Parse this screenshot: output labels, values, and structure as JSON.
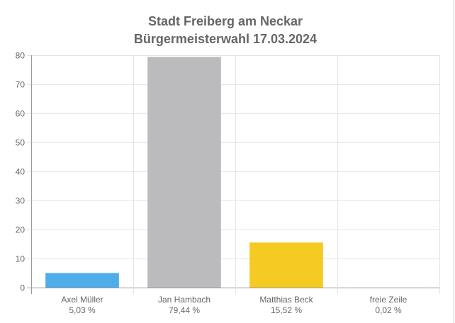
{
  "chart_data": {
    "type": "bar",
    "title": [
      "Stadt Freiberg am Neckar",
      "Bürgermeisterwahl 17.03.2024"
    ],
    "categories": [
      "Axel Müller",
      "Jan Hambach",
      "Matthias Beck",
      "freie Zeile"
    ],
    "category_sublabels": [
      "5,03 %",
      "79,44 %",
      "15,52 %",
      "0,02 %"
    ],
    "values": [
      5.03,
      79.44,
      15.52,
      0.02
    ],
    "colors": [
      "#4fade9",
      "#bbbbbd",
      "#f5ca23",
      "#e0e0e0"
    ],
    "xlabel": "",
    "ylabel": "",
    "ylim": [
      0,
      80
    ],
    "yticks": [
      0,
      10,
      20,
      30,
      40,
      50,
      60,
      70,
      80
    ],
    "grid": true,
    "legend": "none"
  }
}
